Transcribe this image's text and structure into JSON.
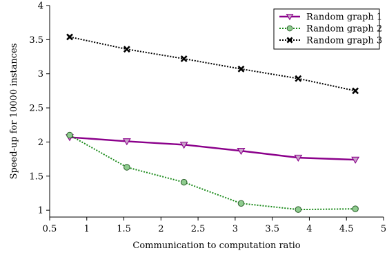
{
  "chart_data": {
    "type": "line",
    "title": "",
    "xlabel": "Communication to computation ratio",
    "ylabel": "Speed-up for 10000 instances",
    "xlim": [
      0.5,
      5
    ],
    "ylim": [
      0.9,
      4
    ],
    "xticks": [
      0.5,
      1,
      1.5,
      2,
      2.5,
      3,
      3.5,
      4,
      4.5,
      5
    ],
    "xtick_labels": [
      "0.5",
      "1",
      "1.5",
      "2",
      "2.5",
      "3",
      "3.5",
      "4",
      "4.5",
      "5"
    ],
    "yticks": [
      1,
      1.5,
      2,
      2.5,
      3,
      3.5,
      4
    ],
    "ytick_labels": [
      "1",
      "1.5",
      "2",
      "2.5",
      "3",
      "3.5",
      "4"
    ],
    "grid": false,
    "legend_position": "top-right",
    "series": [
      {
        "name": "Random graph 1",
        "color": "#8b008b",
        "line_style": "solid",
        "marker": "triangle-down",
        "marker_fill": "#c9a3c9",
        "x": [
          0.77,
          1.54,
          2.31,
          3.08,
          3.85,
          4.62
        ],
        "y": [
          2.07,
          2.01,
          1.96,
          1.87,
          1.77,
          1.74
        ]
      },
      {
        "name": "Random graph 2",
        "color": "#1a8a1a",
        "line_style": "dotted",
        "marker": "circle",
        "marker_fill": "#8fcc8f",
        "x": [
          0.77,
          1.54,
          2.31,
          3.08,
          3.85,
          4.62
        ],
        "y": [
          2.1,
          1.63,
          1.41,
          1.1,
          1.01,
          1.02
        ]
      },
      {
        "name": "Random graph 3",
        "color": "#000000",
        "line_style": "dotted",
        "marker": "x",
        "marker_fill": "#000000",
        "x": [
          0.77,
          1.54,
          2.31,
          3.08,
          3.85,
          4.62
        ],
        "y": [
          3.54,
          3.36,
          3.22,
          3.07,
          2.93,
          2.75
        ]
      }
    ]
  }
}
